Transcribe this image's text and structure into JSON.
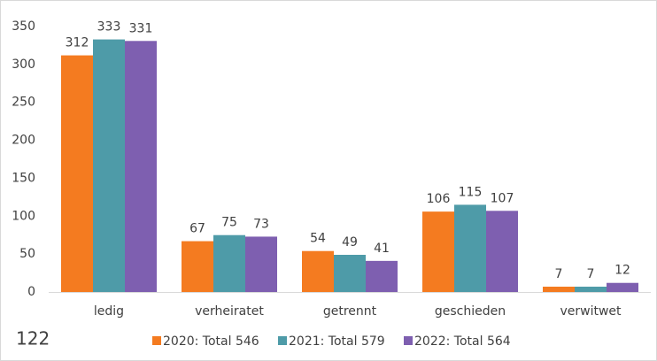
{
  "chart_data": {
    "type": "bar",
    "categories": [
      "ledig",
      "verheiratet",
      "getrennt",
      "geschieden",
      "verwitwet"
    ],
    "series": [
      {
        "name": "2020: Total 546",
        "color": "#f47b20",
        "values": [
          312,
          67,
          54,
          106,
          7
        ]
      },
      {
        "name": "2021: Total 579",
        "color": "#4e9ba8",
        "values": [
          333,
          75,
          49,
          115,
          7
        ]
      },
      {
        "name": "2022: Total 564",
        "color": "#7e5fb0",
        "values": [
          331,
          73,
          41,
          107,
          12
        ]
      }
    ],
    "ylim": [
      0,
      350
    ],
    "yticks": [
      0,
      50,
      100,
      150,
      200,
      250,
      300,
      350
    ],
    "grid": false,
    "legend": "bottom"
  },
  "page_number": "122"
}
